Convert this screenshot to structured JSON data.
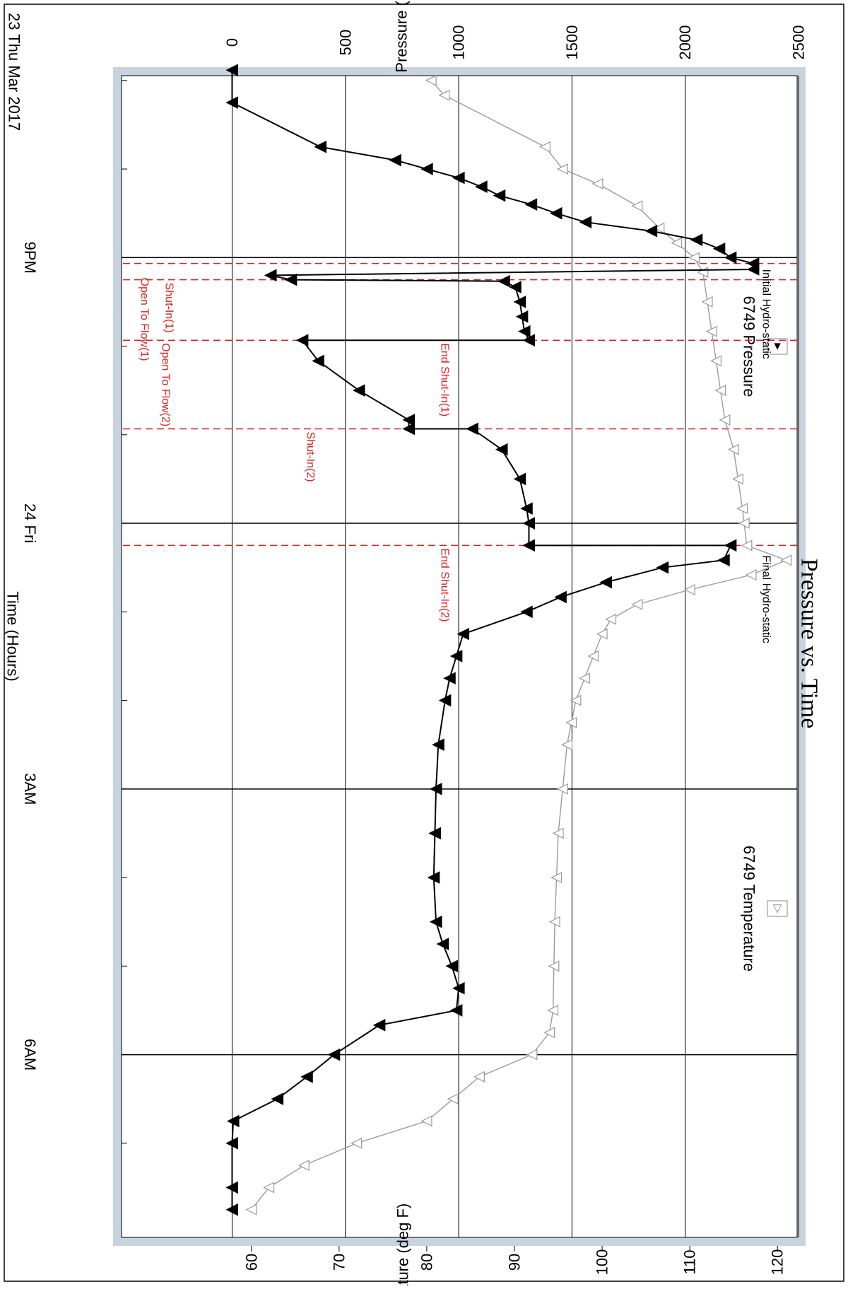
{
  "chart_data": {
    "type": "line",
    "title": "Pressure vs. Time",
    "date_label": "23 Thu Mar 2017",
    "xlabel": "Time (Hours)",
    "xticks": [
      "9PM",
      "24 Fri",
      "3AM",
      "6AM"
    ],
    "xlim_hours": [
      18.85,
      7.98
    ],
    "ylabel_left": "Pressure (psig)",
    "ylim_left": [
      -120,
      2500
    ],
    "yticks_left": [
      "0",
      "500",
      "1000",
      "1500",
      "2000",
      "2500"
    ],
    "ylabel_right": "Temperature (deg F)",
    "ylim_right": [
      54.7,
      122.4
    ],
    "yticks_right": [
      "60",
      "70",
      "80",
      "90",
      "100",
      "110",
      "120"
    ],
    "legend": [
      {
        "label": "6749 Pressure",
        "marker": "filled-left-triangle",
        "color": "#000000"
      },
      {
        "label": "6749 Temperature",
        "marker": "open-left-triangle",
        "color": "#999999"
      }
    ],
    "colors": {
      "pressure": "#000000",
      "temperature": "#9a9a9a",
      "event_line": "#e02020",
      "grid": "#000000",
      "band": "#c8d3de"
    },
    "series": [
      {
        "name": "6749 Pressure",
        "axis": "left",
        "x": [
          "18:53",
          "19:15",
          "19:45",
          "19:54",
          "20:00",
          "20:06",
          "20:12",
          "20:18",
          "20:24",
          "20:30",
          "20:36",
          "20:42",
          "20:48",
          "20:54",
          "21:00",
          "21:04",
          "21:08",
          "21:12",
          "21:15",
          "21:16",
          "21:20",
          "21:30",
          "21:40",
          "21:50",
          "21:56",
          "21:56",
          "22:10",
          "22:30",
          "22:50",
          "22:56",
          "22:56",
          "23:10",
          "23:30",
          "23:50",
          "24:00",
          "24:15",
          "24:15",
          "24:25",
          "24:30",
          "24:40",
          "24:50",
          "25:00",
          "25:15",
          "25:30",
          "25:45",
          "26:00",
          "26:30",
          "27:00",
          "27:30",
          "28:00",
          "28:30",
          "28:45",
          "29:00",
          "29:15",
          "29:30",
          "29:40",
          "30:00",
          "30:15",
          "30:30",
          "30:45",
          "31:00",
          "31:30",
          "31:45"
        ],
        "y": [
          0,
          0,
          390,
          720,
          860,
          1000,
          1100,
          1180,
          1320,
          1430,
          1560,
          1850,
          2050,
          2150,
          2200,
          2300,
          2300,
          170,
          260,
          1200,
          1250,
          1270,
          1280,
          1290,
          1310,
          310,
          380,
          560,
          780,
          780,
          1060,
          1190,
          1270,
          1300,
          1310,
          1310,
          2200,
          2170,
          1900,
          1650,
          1450,
          1300,
          1020,
          990,
          960,
          940,
          910,
          900,
          895,
          890,
          900,
          930,
          970,
          1000,
          990,
          650,
          450,
          330,
          200,
          5,
          0,
          0,
          0
        ],
        "unit": "psig"
      },
      {
        "name": "6749 Temperature",
        "axis": "right",
        "x": [
          "19:00",
          "19:10",
          "19:45",
          "20:00",
          "20:10",
          "20:25",
          "20:40",
          "20:50",
          "21:00",
          "21:10",
          "21:30",
          "21:50",
          "22:10",
          "22:30",
          "22:50",
          "23:10",
          "23:30",
          "23:50",
          "24:00",
          "24:15",
          "24:25",
          "24:35",
          "24:45",
          "24:55",
          "25:05",
          "25:15",
          "25:30",
          "25:45",
          "26:00",
          "26:15",
          "26:30",
          "27:00",
          "27:30",
          "28:00",
          "28:30",
          "29:00",
          "29:30",
          "29:45",
          "30:00",
          "30:15",
          "30:30",
          "30:45",
          "31:00",
          "31:15",
          "31:30",
          "31:45"
        ],
        "y": [
          80.5,
          82.0,
          93.5,
          95.5,
          99.5,
          104.0,
          106.5,
          108.5,
          110.5,
          111.5,
          112.0,
          112.5,
          113.0,
          113.5,
          114.0,
          115.0,
          115.5,
          116.0,
          116.2,
          116.5,
          121.0,
          117.0,
          110.0,
          104.0,
          101.0,
          100.0,
          99.0,
          98.0,
          97.0,
          96.5,
          96.0,
          95.5,
          95.0,
          94.8,
          94.6,
          94.5,
          94.4,
          94.0,
          92.0,
          86.0,
          83.0,
          80.0,
          72.0,
          66.0,
          62.0,
          60.0
        ],
        "unit": "deg F"
      }
    ],
    "event_markers": [
      {
        "label": "Initial Hydro-static",
        "time": "21:04",
        "color": "#000000"
      },
      {
        "label": "Open To Flow(1)",
        "time": "21:04",
        "color": "#e02020"
      },
      {
        "label": "Shut-In(1)",
        "time": "21:15",
        "color": "#e02020"
      },
      {
        "label": "End Shut-In(1)",
        "time": "21:56",
        "color": "#e02020"
      },
      {
        "label": "Open To Flow(2)",
        "time": "21:56",
        "color": "#e02020"
      },
      {
        "label": "Shut-In(2)",
        "time": "22:56",
        "color": "#e02020"
      },
      {
        "label": "End Shut-In(2)",
        "time": "24:15",
        "color": "#e02020"
      },
      {
        "label": "Final Hydro-static",
        "time": "24:15",
        "color": "#000000"
      }
    ]
  }
}
